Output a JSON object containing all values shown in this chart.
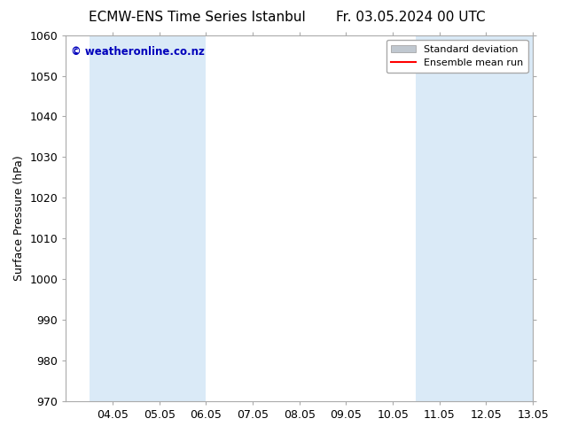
{
  "title_left": "ECMW-ENS Time Series Istanbul",
  "title_right": "Fr. 03.05.2024 00 UTC",
  "ylabel": "Surface Pressure (hPa)",
  "ylim": [
    970,
    1060
  ],
  "yticks": [
    970,
    980,
    990,
    1000,
    1010,
    1020,
    1030,
    1040,
    1050,
    1060
  ],
  "xtick_labels": [
    "04.05",
    "05.05",
    "06.05",
    "07.05",
    "08.05",
    "09.05",
    "10.05",
    "11.05",
    "12.05",
    "13.05"
  ],
  "xtick_positions": [
    1,
    2,
    3,
    4,
    5,
    6,
    7,
    8,
    9,
    10
  ],
  "xlim": [
    0,
    10
  ],
  "shaded_bands": [
    {
      "x_start": 0.5,
      "x_end": 3.0,
      "color": "#daeaf7"
    },
    {
      "x_start": 7.5,
      "x_end": 10.0,
      "color": "#daeaf7"
    }
  ],
  "watermark_text": "© weatheronline.co.nz",
  "watermark_color": "#0000bb",
  "watermark_fontsize": 8.5,
  "legend_labels": [
    "Standard deviation",
    "Ensemble mean run"
  ],
  "legend_patch_color": "#c0c8d0",
  "legend_line_color": "#ff0000",
  "background_color": "#ffffff",
  "plot_bg_color": "#ffffff",
  "spine_color": "#aaaaaa",
  "tick_label_fontsize": 9,
  "title_fontsize": 11,
  "ylabel_fontsize": 9,
  "legend_fontsize": 8
}
